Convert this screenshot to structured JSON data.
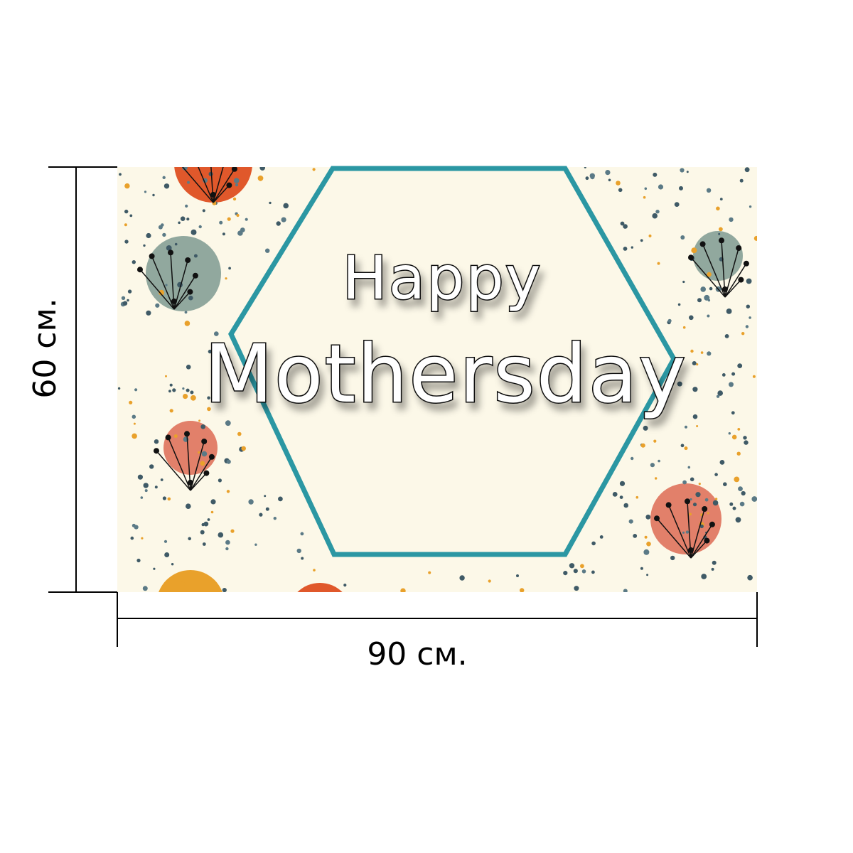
{
  "banner": {
    "line1": "Happy",
    "line2": "Mothersday"
  },
  "dimensions": {
    "height": "60 см.",
    "width": "90 см."
  }
}
